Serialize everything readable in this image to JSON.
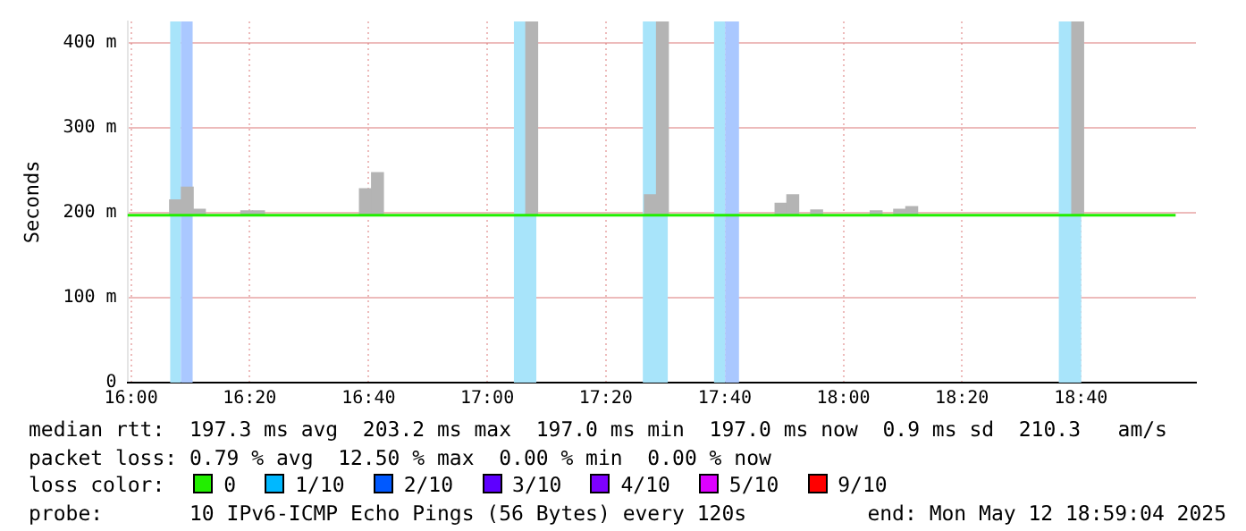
{
  "chart_data": {
    "type": "line",
    "ylabel": "Seconds",
    "legend_title": "loss color:",
    "legend": "bottom",
    "grid": true,
    "xlim": [
      15.99,
      18.99
    ],
    "xticks": [
      {
        "value": 16,
        "label": "16:00"
      },
      {
        "value": 16.333,
        "label": "16:20"
      },
      {
        "value": 16.667,
        "label": "16:40"
      },
      {
        "value": 17,
        "label": "17:00"
      },
      {
        "value": 17.333,
        "label": "17:20"
      },
      {
        "value": 17.667,
        "label": "17:40"
      },
      {
        "value": 18,
        "label": "18:00"
      },
      {
        "value": 18.333,
        "label": "18:20"
      },
      {
        "value": 18.667,
        "label": "18:40"
      }
    ],
    "ylim": [
      0,
      425
    ],
    "yticks": [
      0,
      {
        "value": 100,
        "label": "100 m"
      },
      {
        "value": 200,
        "label": "200 m"
      },
      {
        "value": 300,
        "label": "300 m"
      },
      {
        "value": 400,
        "label": "400 m"
      }
    ],
    "series": [
      {
        "type": "bar",
        "color": "#b4b4b4",
        "x": [
          16.125,
          16.158,
          16.192,
          16.325,
          16.358,
          16.658,
          16.692,
          17.125,
          17.458,
          17.492,
          17.825,
          17.858,
          17.925,
          18.092,
          18.158,
          18.192,
          18.658
        ],
        "base": [
          197,
          197,
          197,
          197,
          197,
          197,
          197,
          197,
          197,
          197,
          197,
          197,
          197,
          197,
          197,
          197,
          197
        ],
        "values": [
          18,
          33,
          7,
          5,
          5,
          31,
          50,
          228,
          24,
          228,
          14,
          24,
          6,
          5,
          7,
          10,
          228
        ]
      },
      {
        "name": "0",
        "color": "#22ee00",
        "x": [
          15.99,
          18.933
        ],
        "values": [
          197,
          197
        ]
      },
      {
        "name": "1/10",
        "color": "#00b8ff"
      },
      {
        "name": "2/10",
        "color": "#0059ff"
      },
      {
        "name": "3/10",
        "color": "#5e00ff"
      },
      {
        "name": "4/10",
        "color": "#7e00ff"
      },
      {
        "name": "5/10",
        "color": "#dd00ff"
      },
      {
        "name": "9/10",
        "color": "#ff0000"
      }
    ],
    "bands": [
      {
        "axis": "x",
        "from": 16.11,
        "to": 16.14,
        "color": "#a8e4fa"
      },
      {
        "axis": "x",
        "from": 16.14,
        "to": 16.173,
        "color": "#aac8ff"
      },
      {
        "axis": "x",
        "from": 17.075,
        "to": 17.138,
        "color": "#a8e4fa"
      },
      {
        "axis": "x",
        "from": 17.437,
        "to": 17.507,
        "color": "#a8e4fa"
      },
      {
        "axis": "x",
        "from": 17.637,
        "to": 17.668,
        "color": "#a8e4fa"
      },
      {
        "axis": "x",
        "from": 17.668,
        "to": 17.707,
        "color": "#aac8ff"
      },
      {
        "axis": "x",
        "from": 18.605,
        "to": 18.668,
        "color": "#a8e4fa"
      }
    ],
    "annotations": [
      "median rtt:  197.3 ms avg  203.2 ms max  197.0 ms min  197.0 ms now  0.9 ms sd  210.3   am/s",
      "packet loss: 0.79 % avg  12.50 % max  0.00 % min  0.00 % now",
      "probe:       10 IPv6-ICMP Echo Pings (56 Bytes) every 120s",
      "end: Mon May 12 18:59:04 2025"
    ]
  }
}
